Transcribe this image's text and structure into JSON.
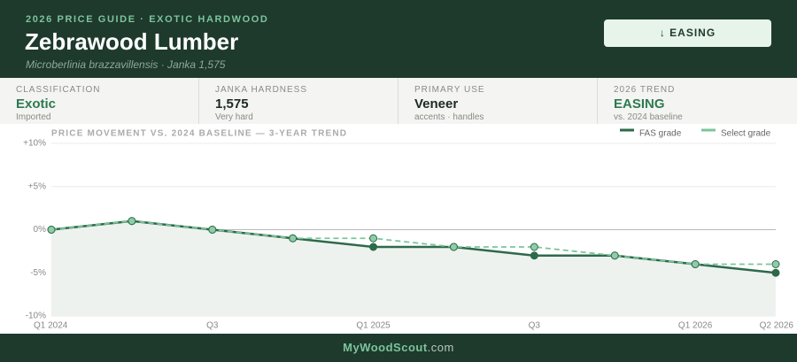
{
  "header": {
    "eyebrow": "2026 PRICE GUIDE · EXOTIC HARDWOOD",
    "title": "Zebrawood Lumber",
    "subtitle": "Microberlinia brazzavillensis · Janka 1,575",
    "badge": "↓ EASING"
  },
  "stats": [
    {
      "label": "CLASSIFICATION",
      "value": "Exotic",
      "note": "Imported"
    },
    {
      "label": "JANKA HARDNESS",
      "value": "1,575",
      "note": "Very hard"
    },
    {
      "label": "PRIMARY USE",
      "value": "Veneer",
      "note": "accents · handles"
    },
    {
      "label": "2026 TREND",
      "value": "EASING",
      "note": "vs. 2024 baseline"
    }
  ],
  "chart_data": {
    "type": "line",
    "title": "PRICE MOVEMENT VS. 2024 BASELINE — 3-YEAR TREND",
    "categories": [
      "Q1 2024",
      null,
      "Q3",
      null,
      "Q1 2025",
      null,
      "Q3",
      null,
      "Q1 2026",
      "Q2 2026"
    ],
    "series": [
      {
        "name": "FAS grade",
        "color": "#2d6a4a",
        "values": [
          0,
          1,
          0,
          -1,
          -2,
          -2,
          -3,
          -3,
          -4,
          -5
        ]
      },
      {
        "name": "Select grade",
        "color": "#7cc49c",
        "values": [
          0,
          1,
          0,
          -1,
          -1,
          -2,
          -2,
          -3,
          -4,
          -4
        ]
      }
    ],
    "ylim": [
      -10,
      10
    ],
    "yticks": [
      {
        "value": 10,
        "label": "+10%"
      },
      {
        "value": 5,
        "label": "+5%"
      },
      {
        "value": 0,
        "label": "0%"
      },
      {
        "value": -5,
        "label": "-5%"
      },
      {
        "value": -10,
        "label": "-10%"
      }
    ],
    "grid": true,
    "legend": "top-right"
  },
  "footer": {
    "brand": "MyWoodScout",
    "tld": ".com"
  }
}
